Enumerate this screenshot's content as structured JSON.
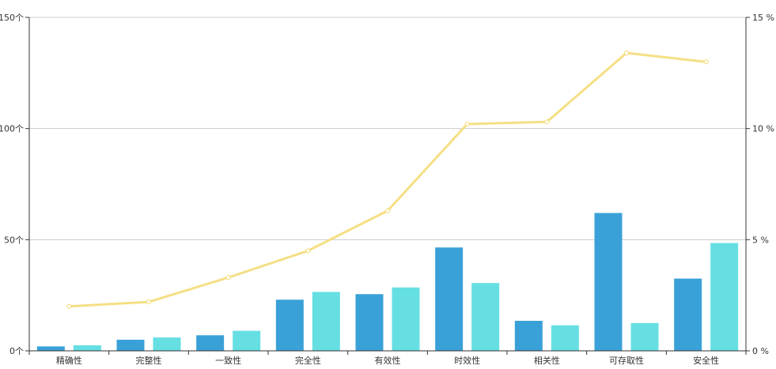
{
  "chart_data": {
    "type": "bar",
    "categories": [
      "精确性",
      "完整性",
      "一致性",
      "完全性",
      "有效性",
      "时效性",
      "相关性",
      "可存取性",
      "安全性"
    ],
    "series": [
      {
        "type": "bar",
        "axis": "left",
        "color": "#3aa1d8",
        "values": [
          2,
          5,
          7,
          23,
          25.5,
          46.5,
          13.5,
          62,
          32.5
        ]
      },
      {
        "type": "bar",
        "axis": "left",
        "color": "#66dfe3",
        "values": [
          2.5,
          6,
          9,
          26.5,
          28.5,
          30.5,
          11.5,
          12.5,
          48.5
        ]
      },
      {
        "type": "line",
        "axis": "right",
        "color": "#f5df85",
        "values": [
          2.0,
          2.2,
          3.3,
          4.5,
          6.3,
          10.2,
          10.3,
          13.4,
          13.0
        ]
      }
    ],
    "y_left": {
      "min": 0,
      "max": 150,
      "ticks": [
        0,
        50,
        100,
        150
      ],
      "tick_labels": [
        "0个",
        "50个",
        "100个",
        "150个"
      ]
    },
    "y_right": {
      "min": 0,
      "max": 15,
      "ticks": [
        0,
        5,
        10,
        15
      ],
      "tick_labels": [
        "0 %",
        "5 %",
        "10 %",
        "15 %"
      ]
    },
    "grid": true,
    "legend": "none"
  }
}
